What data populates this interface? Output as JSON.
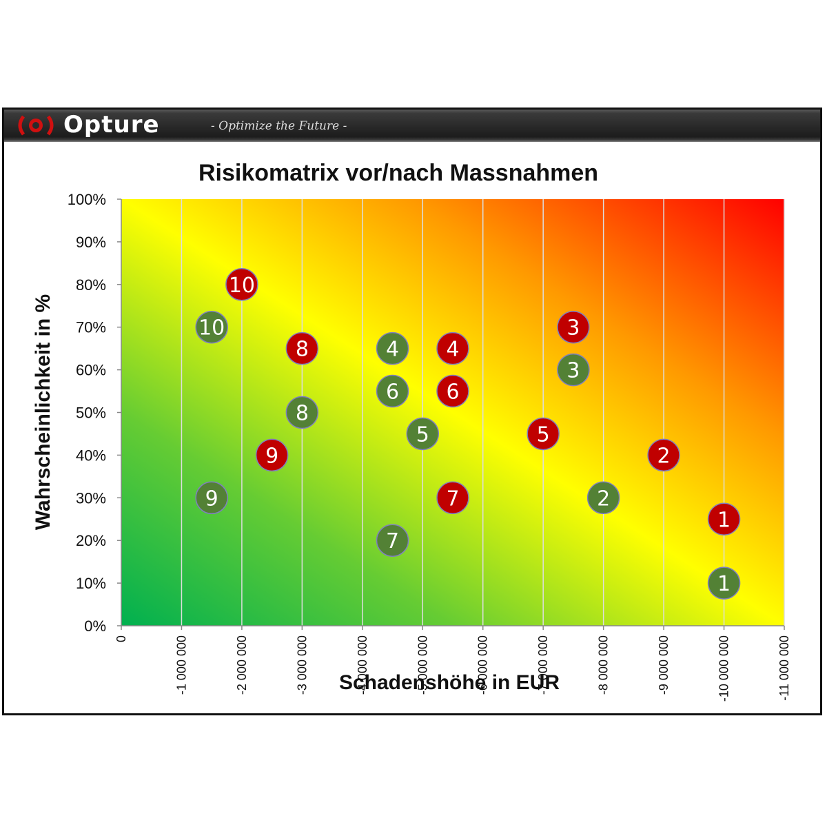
{
  "brand": {
    "name": "Opture",
    "tagline": "- Optimize the Future -"
  },
  "colors": {
    "before": "#C00000",
    "after": "#538135",
    "bubble_border_before": "#7f7fbf",
    "bubble_border_after": "#7f7fbf"
  },
  "chart_data": {
    "type": "scatter",
    "title": "Risikomatrix vor/nach Massnahmen",
    "xlabel": "Schadenshöhe in EUR",
    "ylabel": "Wahrscheinlichkeit in %",
    "xlim": [
      0,
      -11000000
    ],
    "ylim": [
      0,
      1
    ],
    "grid": "vertical",
    "x_ticks": [
      0,
      -1000000,
      -2000000,
      -3000000,
      -4000000,
      -5000000,
      -6000000,
      -7000000,
      -8000000,
      -9000000,
      -10000000,
      -11000000
    ],
    "x_tick_labels": [
      "0",
      "-1 000 000",
      "-2 000 000",
      "-3 000 000",
      "-4 000 000",
      "-5 000 000",
      "-6 000 000",
      "-7 000 000",
      "-8 000 000",
      "-9 000 000",
      "-10 000 000",
      "-11 000 000"
    ],
    "y_ticks": [
      0,
      0.1,
      0.2,
      0.3,
      0.4,
      0.5,
      0.6,
      0.7,
      0.8,
      0.9,
      1.0
    ],
    "y_tick_labels": [
      "0%",
      "10%",
      "20%",
      "30%",
      "40%",
      "50%",
      "60%",
      "70%",
      "80%",
      "90%",
      "100%"
    ],
    "series": [
      {
        "key": "before",
        "points": [
          {
            "label": "1",
            "x": -10000000,
            "y": 0.25
          },
          {
            "label": "2",
            "x": -9000000,
            "y": 0.4
          },
          {
            "label": "3",
            "x": -7500000,
            "y": 0.7
          },
          {
            "label": "4",
            "x": -5500000,
            "y": 0.65
          },
          {
            "label": "5",
            "x": -7000000,
            "y": 0.45
          },
          {
            "label": "6",
            "x": -5500000,
            "y": 0.55
          },
          {
            "label": "7",
            "x": -5500000,
            "y": 0.3
          },
          {
            "label": "8",
            "x": -3000000,
            "y": 0.65
          },
          {
            "label": "9",
            "x": -2500000,
            "y": 0.4
          },
          {
            "label": "10",
            "x": -2000000,
            "y": 0.8
          }
        ]
      },
      {
        "key": "after",
        "points": [
          {
            "label": "1",
            "x": -10000000,
            "y": 0.1
          },
          {
            "label": "2",
            "x": -8000000,
            "y": 0.3
          },
          {
            "label": "3",
            "x": -7500000,
            "y": 0.6
          },
          {
            "label": "4",
            "x": -4500000,
            "y": 0.65
          },
          {
            "label": "5",
            "x": -5000000,
            "y": 0.45
          },
          {
            "label": "6",
            "x": -4500000,
            "y": 0.55
          },
          {
            "label": "7",
            "x": -4500000,
            "y": 0.2
          },
          {
            "label": "8",
            "x": -3000000,
            "y": 0.5
          },
          {
            "label": "9",
            "x": -1500000,
            "y": 0.3
          },
          {
            "label": "10",
            "x": -1500000,
            "y": 0.7
          }
        ]
      }
    ]
  }
}
